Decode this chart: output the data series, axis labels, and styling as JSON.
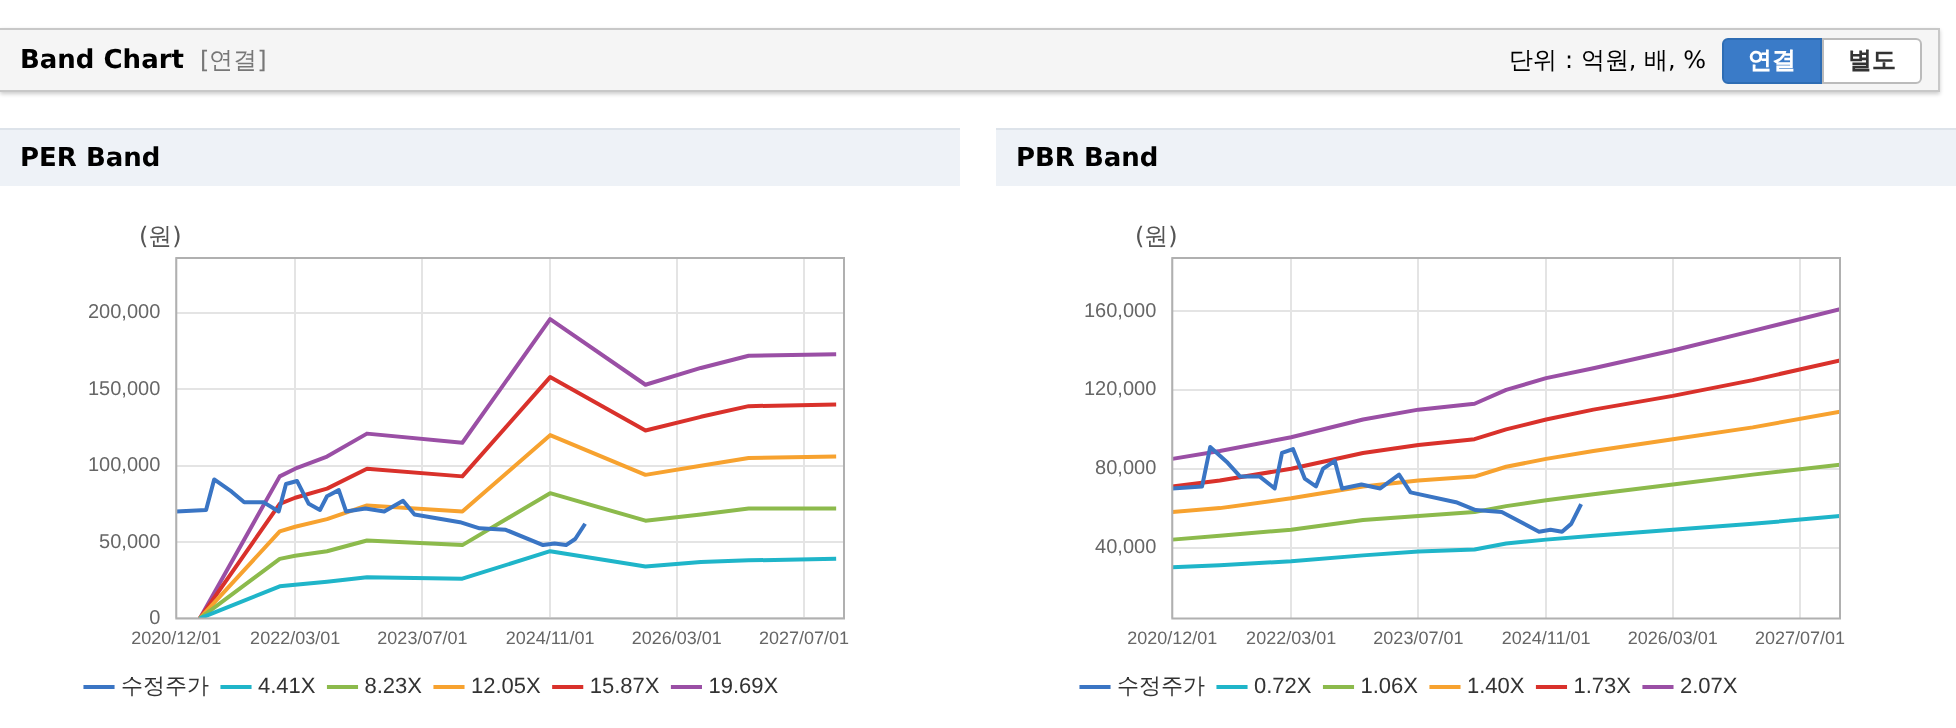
{
  "chart_data": [
    {
      "type": "other",
      "title": "Band Chart",
      "annotations": [
        "[연결]",
        "단위 : 억원, 배, %",
        "연결",
        "별도"
      ]
    },
    {
      "type": "line",
      "title": "PER Band",
      "ylabel": "(원)",
      "legend": "bottom",
      "grid": true,
      "xlim": [
        "2020-12-01",
        "2027-12-01"
      ],
      "xticks": [
        {
          "value": "2020-12-01",
          "label": "2020/12/01"
        },
        {
          "value": "2022-03-01",
          "label": "2022/03/01"
        },
        {
          "value": "2023-07-01",
          "label": "2023/07/01"
        },
        {
          "value": "2024-11-01",
          "label": "2024/11/01"
        },
        {
          "value": "2026-03-01",
          "label": "2026/03/01"
        },
        {
          "value": "2027-07-01",
          "label": "2027/07/01"
        }
      ],
      "ylim": [
        0,
        236000
      ],
      "yticks": [
        {
          "value": 0,
          "label": "0"
        },
        {
          "value": 50000,
          "label": "50,000"
        },
        {
          "value": 100000,
          "label": "100,000"
        },
        {
          "value": 150000,
          "label": "150,000"
        },
        {
          "value": 200000,
          "label": "200,000"
        }
      ],
      "series": [
        {
          "name": "수정주가",
          "color": "#3a75c4",
          "x": [
            "2020-12-01",
            "2021-03-25",
            "2021-04-25",
            "2021-07-01",
            "2021-08-18",
            "2021-11-01",
            "2021-12-28",
            "2022-01-25",
            "2022-03-08",
            "2022-04-22",
            "2022-06-04",
            "2022-07-01",
            "2022-08-15",
            "2022-09-12",
            "2022-11-25",
            "2023-02-05",
            "2023-04-18",
            "2023-06-01",
            "2023-11-22",
            "2024-02-05",
            "2024-05-15",
            "2024-10-05",
            "2024-11-18",
            "2025-01-01",
            "2025-02-05",
            "2025-03-15"
          ],
          "values": [
            70000,
            71000,
            91000,
            83000,
            76000,
            76000,
            70000,
            88000,
            90000,
            75000,
            71000,
            80000,
            84000,
            70000,
            72000,
            70000,
            77000,
            68000,
            63000,
            59000,
            58000,
            48000,
            49000,
            48000,
            52000,
            62000
          ]
        },
        {
          "name": "4.41X",
          "color": "#1fb5c9",
          "x": [
            "2021-03-01",
            "2022-01-01",
            "2022-03-01",
            "2022-07-01",
            "2022-12-01",
            "2023-12-01",
            "2024-11-01",
            "2025-11-01",
            "2026-06-01",
            "2026-12-01",
            "2027-11-01"
          ],
          "values": [
            0,
            21000,
            22000,
            24000,
            27000,
            26000,
            44000,
            34000,
            37000,
            38000,
            39000
          ]
        },
        {
          "name": "8.23X",
          "color": "#8cba4c",
          "x": [
            "2021-03-01",
            "2022-01-01",
            "2022-03-01",
            "2022-07-01",
            "2022-12-01",
            "2023-12-01",
            "2024-11-01",
            "2025-11-01",
            "2026-06-01",
            "2026-12-01",
            "2027-11-01"
          ],
          "values": [
            0,
            39000,
            41000,
            44000,
            51000,
            48000,
            82000,
            64000,
            68000,
            72000,
            72000
          ]
        },
        {
          "name": "12.05X",
          "color": "#f7a22f",
          "x": [
            "2021-03-01",
            "2022-01-01",
            "2022-03-01",
            "2022-07-01",
            "2022-12-01",
            "2023-12-01",
            "2024-11-01",
            "2025-11-01",
            "2026-06-01",
            "2026-12-01",
            "2027-11-01"
          ],
          "values": [
            0,
            57000,
            60000,
            65000,
            74000,
            70000,
            120000,
            94000,
            100000,
            105000,
            106000
          ]
        },
        {
          "name": "15.87X",
          "color": "#d9312b",
          "x": [
            "2021-03-01",
            "2022-01-01",
            "2022-03-01",
            "2022-07-01",
            "2022-12-01",
            "2023-12-01",
            "2024-11-01",
            "2025-11-01",
            "2026-06-01",
            "2026-12-01",
            "2027-11-01"
          ],
          "values": [
            0,
            75000,
            79000,
            85000,
            98000,
            93000,
            158000,
            123000,
            132000,
            139000,
            140000
          ]
        },
        {
          "name": "19.69X",
          "color": "#9a4fa5",
          "x": [
            "2021-03-01",
            "2022-01-01",
            "2022-03-01",
            "2022-07-01",
            "2022-12-01",
            "2023-12-01",
            "2024-11-01",
            "2025-11-01",
            "2026-06-01",
            "2026-12-01",
            "2027-11-01"
          ],
          "values": [
            0,
            93000,
            98000,
            106000,
            121000,
            115000,
            196000,
            153000,
            164000,
            172000,
            173000
          ]
        }
      ]
    },
    {
      "type": "line",
      "title": "PBR Band",
      "ylabel": "(원)",
      "legend": "bottom",
      "grid": true,
      "xlim": [
        "2020-12-01",
        "2027-12-01"
      ],
      "xticks": [
        {
          "value": "2020-12-01",
          "label": "2020/12/01"
        },
        {
          "value": "2022-03-01",
          "label": "2022/03/01"
        },
        {
          "value": "2023-07-01",
          "label": "2023/07/01"
        },
        {
          "value": "2024-11-01",
          "label": "2024/11/01"
        },
        {
          "value": "2026-03-01",
          "label": "2026/03/01"
        },
        {
          "value": "2027-07-01",
          "label": "2027/07/01"
        }
      ],
      "ylim": [
        4000,
        187000
      ],
      "yticks": [
        {
          "value": 40000,
          "label": "40,000"
        },
        {
          "value": 80000,
          "label": "80,000"
        },
        {
          "value": 120000,
          "label": "120,000"
        },
        {
          "value": 160000,
          "label": "160,000"
        }
      ],
      "series": [
        {
          "name": "수정주가",
          "color": "#3a75c4",
          "x": [
            "2020-12-01",
            "2021-03-25",
            "2021-04-25",
            "2021-07-01",
            "2021-08-18",
            "2021-11-01",
            "2021-12-28",
            "2022-01-25",
            "2022-03-08",
            "2022-04-22",
            "2022-06-04",
            "2022-07-01",
            "2022-08-15",
            "2022-09-12",
            "2022-11-25",
            "2023-02-05",
            "2023-04-18",
            "2023-06-01",
            "2023-11-22",
            "2024-02-05",
            "2024-05-15",
            "2024-10-05",
            "2024-11-18",
            "2025-01-01",
            "2025-02-05",
            "2025-03-15"
          ],
          "values": [
            70000,
            71000,
            91000,
            83000,
            76000,
            76000,
            70000,
            88000,
            90000,
            75000,
            71000,
            80000,
            84000,
            70000,
            72000,
            70000,
            77000,
            68000,
            63000,
            59000,
            58000,
            48000,
            49000,
            48000,
            52000,
            62000
          ]
        },
        {
          "name": "0.72X",
          "color": "#1fb5c9",
          "x": [
            "2020-12-01",
            "2021-06-01",
            "2022-03-01",
            "2022-12-01",
            "2023-07-01",
            "2024-02-01",
            "2024-06-01",
            "2024-11-01",
            "2025-05-01",
            "2026-03-01",
            "2027-01-01",
            "2027-12-01"
          ],
          "values": [
            30000,
            31000,
            33000,
            36000,
            38000,
            39000,
            42000,
            44000,
            46000,
            49000,
            52000,
            56000
          ]
        },
        {
          "name": "1.06X",
          "color": "#8cba4c",
          "x": [
            "2020-12-01",
            "2021-06-01",
            "2022-03-01",
            "2022-12-01",
            "2023-07-01",
            "2024-02-01",
            "2024-06-01",
            "2024-11-01",
            "2025-05-01",
            "2026-03-01",
            "2027-01-01",
            "2027-12-01"
          ],
          "values": [
            44000,
            46000,
            49000,
            54000,
            56000,
            58000,
            61000,
            64000,
            67000,
            72000,
            77000,
            82000
          ]
        },
        {
          "name": "1.40X",
          "color": "#f7a22f",
          "x": [
            "2020-12-01",
            "2021-06-01",
            "2022-03-01",
            "2022-12-01",
            "2023-07-01",
            "2024-02-01",
            "2024-06-01",
            "2024-11-01",
            "2025-05-01",
            "2026-03-01",
            "2027-01-01",
            "2027-12-01"
          ],
          "values": [
            58000,
            60000,
            65000,
            71000,
            74000,
            76000,
            81000,
            85000,
            89000,
            95000,
            101000,
            109000
          ]
        },
        {
          "name": "1.73X",
          "color": "#d9312b",
          "x": [
            "2020-12-01",
            "2021-06-01",
            "2022-03-01",
            "2022-12-01",
            "2023-07-01",
            "2024-02-01",
            "2024-06-01",
            "2024-11-01",
            "2025-05-01",
            "2026-03-01",
            "2027-01-01",
            "2027-12-01"
          ],
          "values": [
            71000,
            74000,
            80000,
            88000,
            92000,
            95000,
            100000,
            105000,
            110000,
            117000,
            125000,
            135000
          ]
        },
        {
          "name": "2.07X",
          "color": "#9a4fa5",
          "x": [
            "2020-12-01",
            "2021-06-01",
            "2022-03-01",
            "2022-12-01",
            "2023-07-01",
            "2024-02-01",
            "2024-06-01",
            "2024-11-01",
            "2025-05-01",
            "2026-03-01",
            "2027-01-01",
            "2027-12-01"
          ],
          "values": [
            85000,
            89000,
            96000,
            105000,
            110000,
            113000,
            120000,
            126000,
            131000,
            140000,
            150000,
            161000
          ]
        }
      ]
    }
  ]
}
